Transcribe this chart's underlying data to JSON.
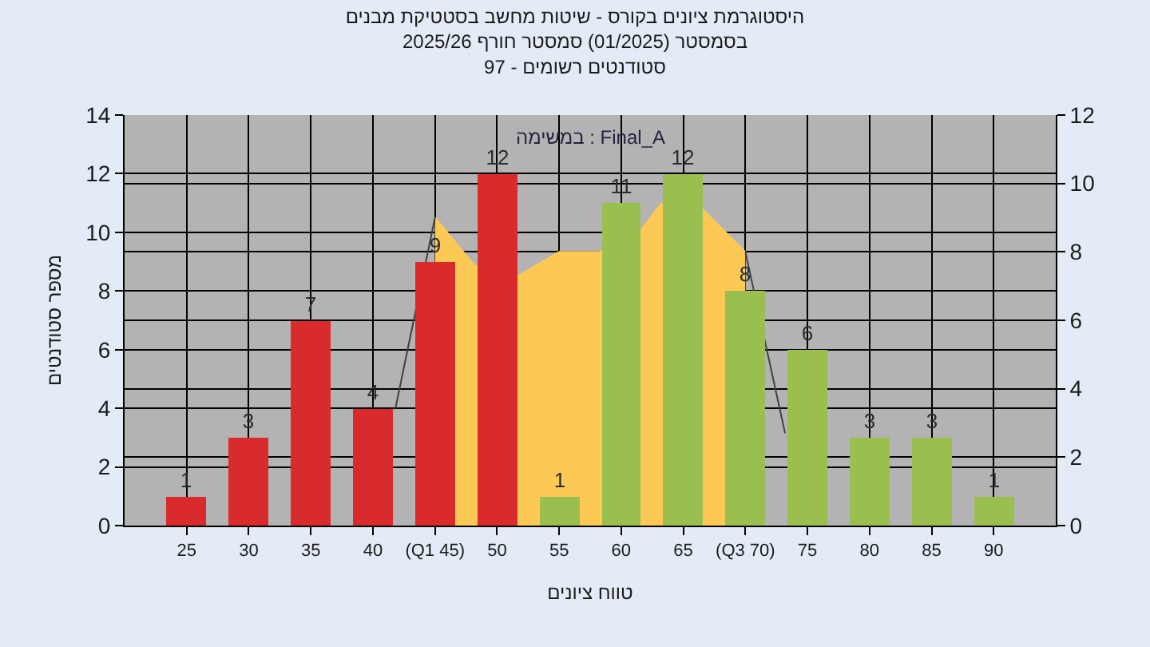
{
  "chart_data": {
    "type": "bar",
    "title": "היסטוגרמת ציונים בקורס - שיטות מחשב בסטטיקת מבנים\nבסמסטר (01/2025) סמסטר חורף 2025/26\nסטודנטים רשומים - 97",
    "xlabel": "טווח ציונים",
    "ylabel": "מספר סטודנטים",
    "annotations": [
      "במשימה : Final_A"
    ],
    "x": [
      25,
      30,
      35,
      40,
      45,
      50,
      55,
      60,
      65,
      70,
      75,
      80,
      85,
      90
    ],
    "xlim": [
      20,
      95
    ],
    "xticks": [
      25,
      30,
      35,
      40,
      {
        "value": 45,
        "label": "(Q1 45)"
      },
      50,
      55,
      60,
      65,
      {
        "value": 70,
        "label": "(Q3 70)"
      },
      75,
      80,
      85,
      90
    ],
    "ylim": [
      0,
      14
    ],
    "yticks": [
      0,
      2,
      4,
      6,
      8,
      10,
      12,
      14
    ],
    "y2lim": [
      0,
      12
    ],
    "y2ticks": [
      0,
      2,
      4,
      6,
      8,
      10,
      12
    ],
    "grid": true,
    "series": [
      {
        "type": "area",
        "axis": "y2",
        "color": "#fdc955",
        "x": [
          45,
          48.2,
          51.7,
          55,
          58.3,
          61.5,
          63.2,
          66.4,
          70
        ],
        "values": [
          9.0,
          7.6,
          7.3,
          8.0,
          8.0,
          8.6,
          9.4,
          9.3,
          8.0
        ]
      },
      {
        "type": "line",
        "axis": "y2",
        "color": "#404040",
        "x": [
          41.8,
          45,
          57,
          70,
          73.2
        ],
        "values": [
          3.4,
          9.0,
          null,
          8.0,
          2.7
        ]
      },
      {
        "colors": [
          "#d92b2b",
          "#d92b2b",
          "#d92b2b",
          "#d92b2b",
          "#d92b2b",
          "#d92b2b",
          "#9bbf4f",
          "#9bbf4f",
          "#9bbf4f",
          "#9bbf4f",
          "#9bbf4f",
          "#9bbf4f",
          "#9bbf4f",
          "#9bbf4f"
        ],
        "values": [
          1,
          3,
          7,
          4,
          9,
          12,
          1,
          11,
          12,
          8,
          6,
          3,
          3,
          1
        ],
        "value_labels": [
          "1",
          "3",
          "7",
          "4",
          "9",
          "12",
          "1",
          "11",
          "12",
          "8",
          "6",
          "3",
          "3",
          "1"
        ]
      }
    ]
  }
}
